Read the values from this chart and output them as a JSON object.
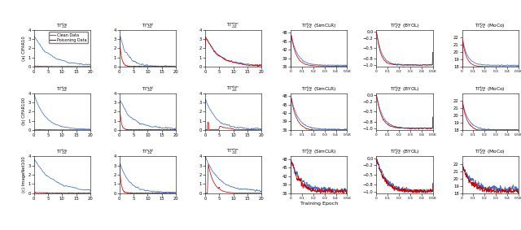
{
  "fig_width": 6.4,
  "fig_height": 2.83,
  "dpi": 100,
  "row_labels": [
    "(a) CIFAR10",
    "(b) CIFAR100",
    "(c) ImageNet100"
  ],
  "col_titles": [
    "T$\\Gamma_{\\mathcal{SL}}^{fns}$",
    "T$\\Gamma_{\\mathcal{SL}}^{std}$",
    "T$\\Gamma_{\\mathcal{SL}}^{dyn}$",
    "T$\\Gamma_{\\mathcal{CL}}^{fns}$ (SimCLR)",
    "T$\\Gamma_{\\mathcal{CL}}^{fns}$ (BYOL)",
    "T$\\Gamma_{\\mathcal{CL}}^{fns}$ (MoCo)"
  ],
  "xlabel": "Training Epoch",
  "clean_color": "#4472C4",
  "poison_color": "#CC0000",
  "legend_labels": [
    "Clean Data",
    "Poisoning Data"
  ],
  "yticks_sl": [
    0,
    1,
    2,
    3,
    4
  ],
  "yticks_simclr": [
    36,
    39,
    42,
    45,
    48
  ],
  "yticks_byol": [
    -1.0,
    -0.8,
    -0.5,
    -0.2,
    0.0
  ],
  "yticks_moco": [
    18,
    19,
    20,
    21,
    22
  ],
  "ylim_sl": [
    0,
    4
  ],
  "ylim_simclr": [
    36,
    49
  ],
  "ylim_byol": [
    -1.05,
    0.05
  ],
  "ylim_moco": [
    18,
    23
  ]
}
